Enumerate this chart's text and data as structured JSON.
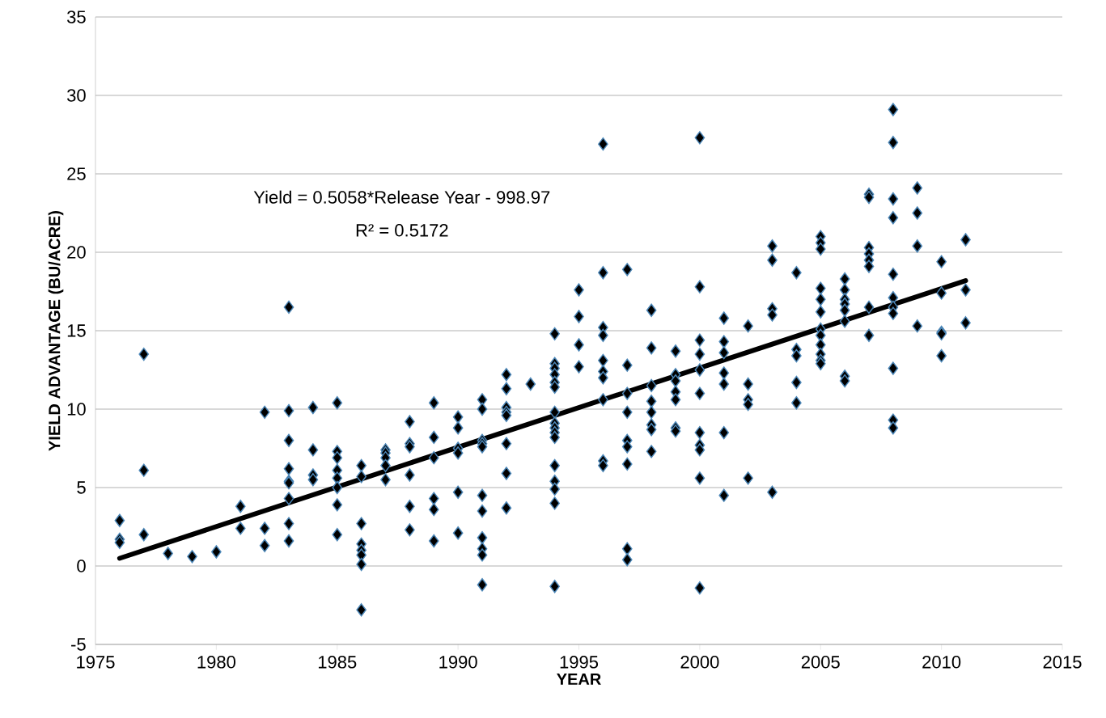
{
  "chart_data": {
    "type": "scatter",
    "xlabel": "YEAR",
    "ylabel": "YIELD ADVANTAGE (BU/ACRE)",
    "annotations": [
      "Yield = 0.5058*Release Year - 998.97",
      "R² = 0.5172"
    ],
    "xlim": [
      1975,
      2015
    ],
    "xticks": [
      1975,
      1980,
      1985,
      1990,
      1995,
      2000,
      2005,
      2010,
      2015
    ],
    "ylim": [
      -5,
      35
    ],
    "yticks": [
      -5,
      0,
      5,
      10,
      15,
      20,
      25,
      30,
      35
    ],
    "grid": "y",
    "legend": false,
    "marker": "diamond",
    "series": [
      {
        "color": "#000000",
        "x": [
          1976,
          1976,
          1976,
          1977,
          1977,
          1977,
          1978,
          1979,
          1980,
          1981,
          1981,
          1982,
          1982,
          1982,
          1983,
          1983,
          1983,
          1983,
          1983,
          1983,
          1983,
          1983,
          1983,
          1984,
          1984,
          1984,
          1984,
          1985,
          1985,
          1985,
          1985,
          1985,
          1985,
          1985,
          1985,
          1986,
          1986,
          1986,
          1986,
          1986,
          1986,
          1986,
          1986,
          1987,
          1987,
          1987,
          1987,
          1987,
          1988,
          1988,
          1988,
          1988,
          1988,
          1988,
          1989,
          1989,
          1989,
          1989,
          1989,
          1989,
          1990,
          1990,
          1990,
          1990,
          1990,
          1990,
          1991,
          1991,
          1991,
          1991,
          1991,
          1991,
          1991,
          1991,
          1991,
          1991,
          1991,
          1992,
          1992,
          1992,
          1992,
          1992,
          1992,
          1992,
          1992,
          1993,
          1994,
          1994,
          1994,
          1994,
          1994,
          1994,
          1994,
          1994,
          1994,
          1994,
          1994,
          1994,
          1994,
          1994,
          1994,
          1994,
          1995,
          1995,
          1995,
          1995,
          1996,
          1996,
          1996,
          1996,
          1996,
          1996,
          1996,
          1996,
          1996,
          1996,
          1997,
          1997,
          1997,
          1997,
          1997,
          1997,
          1997,
          1997,
          1997,
          1998,
          1998,
          1998,
          1998,
          1998,
          1998,
          1998,
          1998,
          1999,
          1999,
          1999,
          1999,
          1999,
          1999,
          1999,
          2000,
          2000,
          2000,
          2000,
          2000,
          2000,
          2000,
          2000,
          2000,
          2000,
          2000,
          2001,
          2001,
          2001,
          2001,
          2001,
          2001,
          2001,
          2002,
          2002,
          2002,
          2002,
          2002,
          2003,
          2003,
          2003,
          2003,
          2003,
          2004,
          2004,
          2004,
          2004,
          2004,
          2005,
          2005,
          2005,
          2005,
          2005,
          2005,
          2005,
          2005,
          2005,
          2005,
          2005,
          2005,
          2006,
          2006,
          2006,
          2006,
          2006,
          2006,
          2006,
          2006,
          2007,
          2007,
          2007,
          2007,
          2007,
          2007,
          2007,
          2007,
          2008,
          2008,
          2008,
          2008,
          2008,
          2008,
          2008,
          2008,
          2008,
          2008,
          2008,
          2009,
          2009,
          2009,
          2009,
          2010,
          2010,
          2010,
          2010,
          2010,
          2011,
          2011,
          2011
        ],
        "values": [
          2.9,
          1.7,
          1.5,
          13.5,
          6.1,
          2.0,
          0.8,
          0.6,
          0.9,
          3.8,
          2.4,
          9.8,
          2.4,
          1.3,
          16.5,
          9.9,
          8.0,
          6.2,
          5.4,
          5.3,
          4.3,
          2.7,
          1.6,
          10.1,
          7.4,
          5.8,
          5.5,
          10.4,
          7.3,
          6.9,
          6.1,
          5.6,
          5.0,
          3.9,
          2.0,
          6.4,
          5.7,
          2.7,
          1.4,
          1.0,
          0.7,
          0.1,
          -2.8,
          7.4,
          7.2,
          6.9,
          6.4,
          5.5,
          9.2,
          7.8,
          7.6,
          5.8,
          3.8,
          2.3,
          10.4,
          8.2,
          6.9,
          4.3,
          3.6,
          1.6,
          9.5,
          8.8,
          7.5,
          7.2,
          4.7,
          2.1,
          10.6,
          10.0,
          8.0,
          7.8,
          7.6,
          4.5,
          3.5,
          1.8,
          1.1,
          0.7,
          -1.2,
          12.2,
          11.3,
          10.1,
          9.8,
          9.6,
          7.8,
          5.9,
          3.7,
          11.6,
          14.8,
          12.9,
          12.6,
          12.2,
          11.7,
          11.4,
          9.8,
          9.1,
          8.8,
          8.5,
          8.2,
          6.4,
          5.4,
          4.9,
          4.0,
          -1.3,
          17.6,
          15.9,
          14.1,
          12.7,
          26.9,
          18.7,
          15.2,
          14.7,
          13.1,
          12.4,
          12.0,
          10.6,
          6.7,
          6.4,
          18.9,
          12.8,
          11.0,
          9.8,
          8.0,
          7.6,
          6.5,
          1.1,
          0.4,
          16.3,
          13.9,
          11.5,
          10.5,
          9.8,
          9.0,
          8.7,
          7.3,
          13.7,
          12.2,
          11.8,
          11.1,
          10.6,
          8.8,
          8.6,
          27.3,
          17.8,
          14.4,
          13.5,
          12.5,
          11.0,
          8.5,
          7.7,
          7.4,
          5.6,
          -1.4,
          15.8,
          14.3,
          13.6,
          12.3,
          11.6,
          8.5,
          4.5,
          15.3,
          11.6,
          10.6,
          10.3,
          5.6,
          20.4,
          19.5,
          16.4,
          16.0,
          4.7,
          18.7,
          13.8,
          13.4,
          11.7,
          10.4,
          21.0,
          20.6,
          20.2,
          17.7,
          17.0,
          16.2,
          15.1,
          14.7,
          14.1,
          13.5,
          13.1,
          12.9,
          18.3,
          17.6,
          17.0,
          16.7,
          16.3,
          15.6,
          12.1,
          11.8,
          23.7,
          23.5,
          20.3,
          19.9,
          19.5,
          19.1,
          16.5,
          14.7,
          29.1,
          27.0,
          23.4,
          22.2,
          18.6,
          17.1,
          16.5,
          16.1,
          12.6,
          9.3,
          8.8,
          24.1,
          22.5,
          20.4,
          15.3,
          19.4,
          17.4,
          14.9,
          14.8,
          13.4,
          20.8,
          17.6,
          15.5
        ]
      },
      {
        "type": "line",
        "color": "#000000",
        "marker": "none",
        "x": [
          1976,
          2011
        ],
        "values": [
          0.49,
          18.19
        ]
      }
    ]
  }
}
